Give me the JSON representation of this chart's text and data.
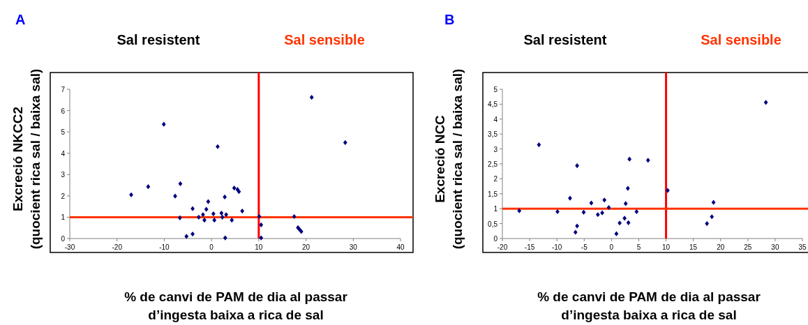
{
  "chart_data": [
    {
      "type": "scatter",
      "title": "A",
      "annotations": [
        "Sal resistent",
        "Sal sensible"
      ],
      "xlabel": "% de canvi de PAM de dia al passar\nd’ingesta baixa a rica de sal",
      "ylabel": "Excreció NKCC2\n(quocient rica sal / baixa sal)",
      "marker": "diamond",
      "grid": false,
      "xlim": [
        -30,
        40
      ],
      "xticks": [
        -30,
        -20,
        -10,
        0,
        10,
        20,
        30,
        40
      ],
      "ylim": [
        0,
        7
      ],
      "yticks": [
        0,
        1,
        2,
        3,
        4,
        5,
        6,
        7
      ],
      "ref_lines": [
        {
          "axis": "x",
          "value": 10,
          "color": "#ff0000"
        },
        {
          "axis": "y",
          "value": 1,
          "color": "#ff3300"
        }
      ],
      "series": [
        {
          "color": "#000080",
          "x": [
            -17,
            -13.4,
            -10.1,
            -7.7,
            -6.6,
            -6.7,
            -5.3,
            -4,
            -4,
            -2.7,
            -1.8,
            -1.5,
            -1.1,
            -0.7,
            0.4,
            0.6,
            1.3,
            2.1,
            2.3,
            2.8,
            3.1,
            2.9,
            4.3,
            4.8,
            5.5,
            5.8,
            6.5,
            10.1,
            10.5,
            10.5,
            17.5,
            18.3,
            18.6,
            19,
            21.2,
            28.3
          ],
          "values": [
            2.05,
            2.43,
            5.36,
            1.99,
            2.57,
            0.97,
            0.1,
            1.4,
            0.21,
            1,
            1.12,
            0.86,
            1.37,
            1.73,
            1.16,
            0.86,
            4.31,
            1.19,
            1,
            1.95,
            1.12,
            0.03,
            0.86,
            2.37,
            2.3,
            2.2,
            1.29,
            1.03,
            0.64,
            0.03,
            1.03,
            0.51,
            0.43,
            0.33,
            6.62,
            4.5
          ]
        }
      ]
    },
    {
      "type": "scatter",
      "title": "B",
      "annotations": [
        "Sal resistent",
        "Sal sensible"
      ],
      "xlabel": "% de canvi de PAM de dia al passar\nd’ingesta baixa a rica de sal",
      "ylabel": "Excreció NCC\n(quocient rica sal / baixa sal)",
      "marker": "diamond",
      "grid": false,
      "xlim": [
        -20,
        35
      ],
      "xticks": [
        -20,
        -15,
        -10,
        -5,
        0,
        5,
        10,
        15,
        20,
        25,
        30,
        35
      ],
      "ylim": [
        0,
        5
      ],
      "yticks": [
        0,
        {
          "value": 0.5,
          "label": "0,5"
        },
        1,
        {
          "value": 1.5,
          "label": "1,5"
        },
        2,
        {
          "value": 2.5,
          "label": "2,5"
        },
        3,
        {
          "value": 3.5,
          "label": "3,5"
        },
        4,
        {
          "value": 4.5,
          "label": "4,5"
        },
        5
      ],
      "ref_lines": [
        {
          "axis": "x",
          "value": 10,
          "color": "#ff0000"
        },
        {
          "axis": "y",
          "value": 1,
          "color": "#ff3300"
        }
      ],
      "series": [
        {
          "color": "#000080",
          "x": [
            -16.9,
            -13.3,
            -9.9,
            -7.6,
            -6.3,
            -6.3,
            -6.6,
            -5.1,
            -3.7,
            -2.5,
            -1.7,
            -1.3,
            -0.5,
            0.9,
            1.5,
            2.4,
            2.6,
            3,
            3.1,
            3.3,
            4.6,
            6.7,
            10.3,
            18.7,
            18.4,
            17.5,
            28.3
          ],
          "values": [
            0.93,
            3.14,
            0.9,
            1.35,
            2.44,
            0.42,
            0.21,
            0.88,
            1.19,
            0.8,
            0.86,
            1.29,
            1.04,
            0.16,
            0.52,
            0.68,
            1.17,
            1.68,
            0.53,
            2.66,
            0.9,
            2.62,
            1.61,
            1.21,
            0.73,
            0.5,
            4.56
          ]
        }
      ]
    }
  ]
}
